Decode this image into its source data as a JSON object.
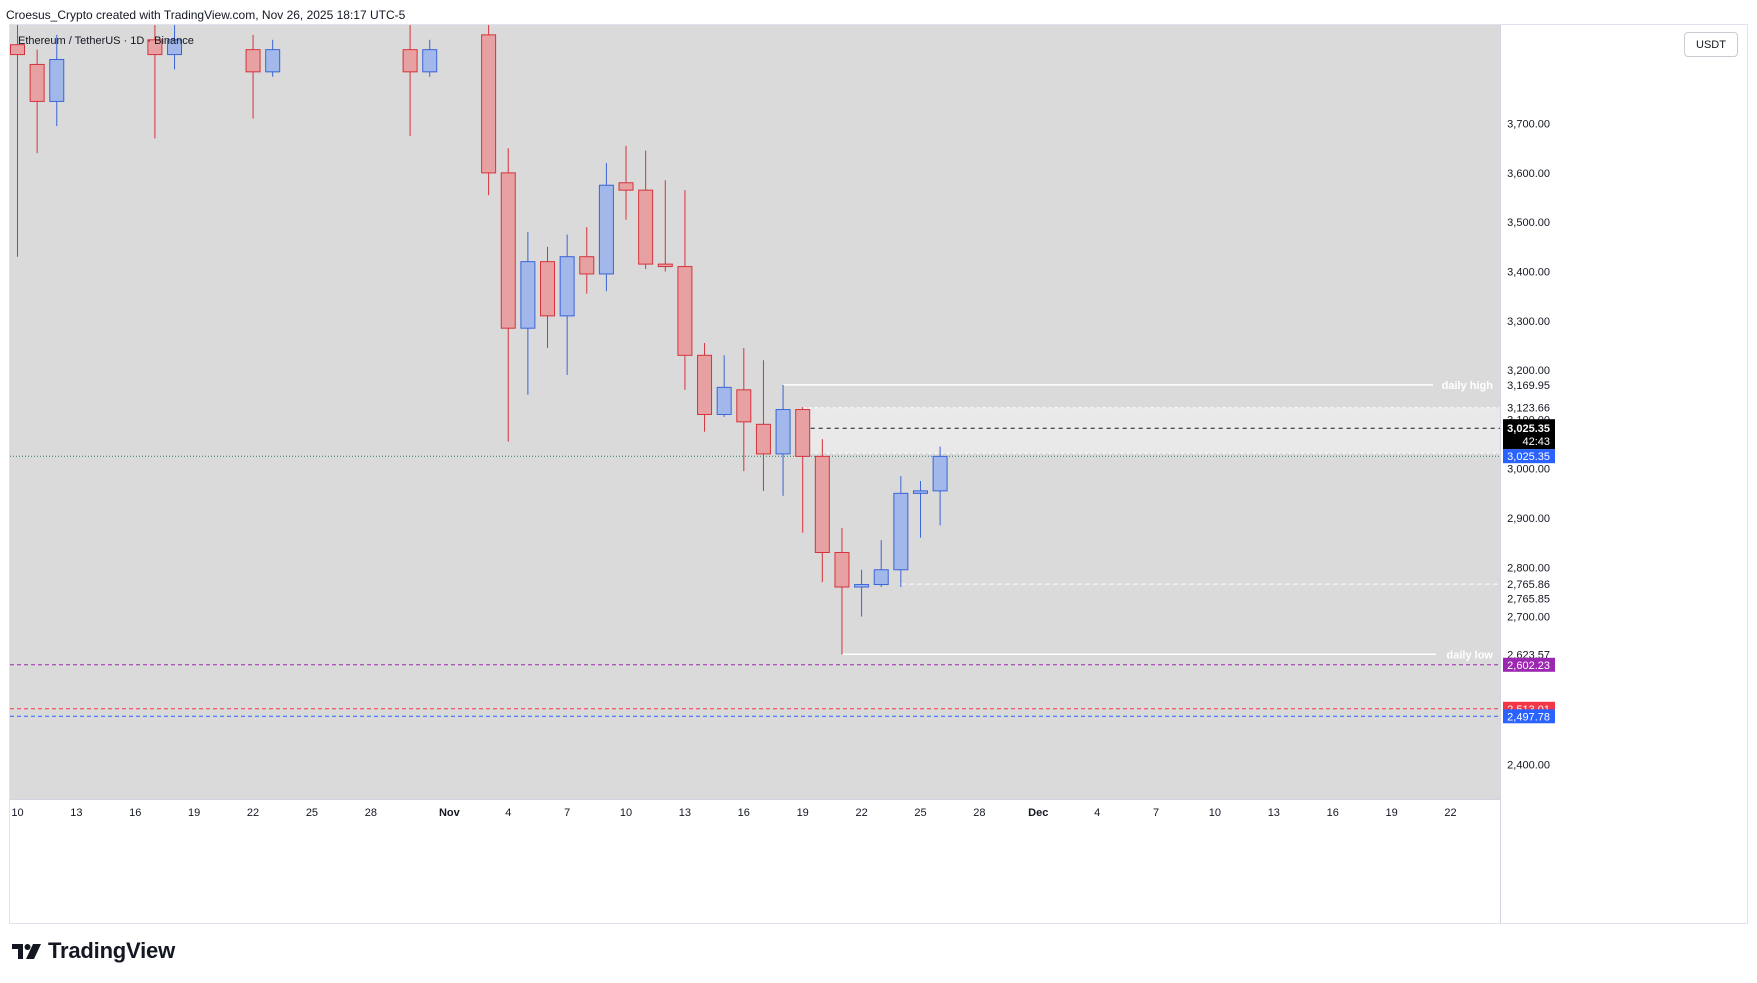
{
  "header": {
    "caption": "Croesus_Crypto created with TradingView.com, Nov 26, 2025 18:17 UTC-5"
  },
  "symbol": {
    "label": "Ethereum / TetherUS · 1D · Binance"
  },
  "currency_button": {
    "label": "USDT"
  },
  "brand": {
    "name": "TradingView",
    "icon": "tradingview-logo-icon"
  },
  "colors": {
    "background": "#dadada",
    "bull": "#a3b8ea",
    "bull_border": "#3a64d8",
    "bear": "#e8a1a3",
    "bear_border": "#d5333b",
    "purple_line": "#9c27b0",
    "red_line": "#f23645",
    "blue_line": "#2962ff"
  },
  "chart_data": {
    "type": "candlestick",
    "title": "",
    "xlabel": "",
    "ylabel": "",
    "ylim": [
      2330,
      3900
    ],
    "x_ticks": [
      "10",
      "13",
      "16",
      "19",
      "22",
      "25",
      "28",
      "Nov",
      "4",
      "7",
      "10",
      "13",
      "16",
      "19",
      "22",
      "25",
      "28",
      "Dec",
      "4",
      "7",
      "10",
      "13",
      "16",
      "19",
      "22"
    ],
    "y_ticks": [
      "2,400.00",
      "2,500.00",
      "2,600.00",
      "2,700.00",
      "2,800.00",
      "2,900.00",
      "3,000.00",
      "3,100.00",
      "3,200.00",
      "3,300.00",
      "3,400.00",
      "3,500.00",
      "3,600.00",
      "3,700.00"
    ],
    "y_tick_values": [
      2400,
      2500,
      2600,
      2700,
      2800,
      2900,
      3000,
      3100,
      3200,
      3300,
      3400,
      3500,
      3600,
      3700
    ],
    "x_tick_slots": [
      0,
      3,
      6,
      9,
      12,
      15,
      18,
      22,
      25,
      28,
      31,
      34,
      37,
      40,
      43,
      46,
      49,
      52,
      55,
      58,
      61,
      64,
      67,
      70,
      73
    ],
    "candles": [
      {
        "slot": 0,
        "o": 3860,
        "h": 3960,
        "l": 3430,
        "c": 3840
      },
      {
        "slot": 1,
        "o": 3820,
        "h": 3850,
        "l": 3640,
        "c": 3745
      },
      {
        "slot": 2,
        "o": 3745,
        "h": 3880,
        "l": 3695,
        "c": 3830
      },
      {
        "slot": 7,
        "o": 3870,
        "h": 3950,
        "l": 3670,
        "c": 3840
      },
      {
        "slot": 8,
        "o": 3840,
        "h": 3905,
        "l": 3810,
        "c": 3870
      },
      {
        "slot": 12,
        "o": 3850,
        "h": 3880,
        "l": 3710,
        "c": 3805
      },
      {
        "slot": 13,
        "o": 3805,
        "h": 3870,
        "l": 3795,
        "c": 3850
      },
      {
        "slot": 20,
        "o": 3850,
        "h": 3900,
        "l": 3675,
        "c": 3805
      },
      {
        "slot": 21,
        "o": 3805,
        "h": 3870,
        "l": 3795,
        "c": 3850
      },
      {
        "slot": 24,
        "o": 3880,
        "h": 3900,
        "l": 3555,
        "c": 3600
      },
      {
        "slot": 25,
        "o": 3600,
        "h": 3650,
        "l": 3055,
        "c": 3285
      },
      {
        "slot": 26,
        "o": 3285,
        "h": 3480,
        "l": 3150,
        "c": 3420
      },
      {
        "slot": 27,
        "o": 3420,
        "h": 3450,
        "l": 3245,
        "c": 3310
      },
      {
        "slot": 28,
        "o": 3310,
        "h": 3475,
        "l": 3190,
        "c": 3430
      },
      {
        "slot": 29,
        "o": 3430,
        "h": 3490,
        "l": 3355,
        "c": 3395
      },
      {
        "slot": 30,
        "o": 3395,
        "h": 3620,
        "l": 3360,
        "c": 3575
      },
      {
        "slot": 31,
        "o": 3580,
        "h": 3655,
        "l": 3505,
        "c": 3565
      },
      {
        "slot": 32,
        "o": 3565,
        "h": 3645,
        "l": 3405,
        "c": 3415
      },
      {
        "slot": 33,
        "o": 3415,
        "h": 3585,
        "l": 3400,
        "c": 3410
      },
      {
        "slot": 34,
        "o": 3410,
        "h": 3565,
        "l": 3160,
        "c": 3230
      },
      {
        "slot": 35,
        "o": 3230,
        "h": 3255,
        "l": 3075,
        "c": 3110
      },
      {
        "slot": 36,
        "o": 3110,
        "h": 3230,
        "l": 3105,
        "c": 3165
      },
      {
        "slot": 37,
        "o": 3160,
        "h": 3245,
        "l": 2995,
        "c": 3095
      },
      {
        "slot": 38,
        "o": 3090,
        "h": 3220,
        "l": 2955,
        "c": 3030
      },
      {
        "slot": 39,
        "o": 3030,
        "h": 3170,
        "l": 2945,
        "c": 3120
      },
      {
        "slot": 40,
        "o": 3120,
        "h": 3125,
        "l": 2870,
        "c": 3025
      },
      {
        "slot": 41,
        "o": 3025,
        "h": 3060,
        "l": 2770,
        "c": 2830
      },
      {
        "slot": 42,
        "o": 2830,
        "h": 2880,
        "l": 2623,
        "c": 2760
      },
      {
        "slot": 43,
        "o": 2760,
        "h": 2795,
        "l": 2700,
        "c": 2765
      },
      {
        "slot": 44,
        "o": 2765,
        "h": 2855,
        "l": 2760,
        "c": 2795
      },
      {
        "slot": 45,
        "o": 2795,
        "h": 2985,
        "l": 2760,
        "c": 2950
      },
      {
        "slot": 46,
        "o": 2950,
        "h": 2975,
        "l": 2860,
        "c": 2955
      },
      {
        "slot": 47,
        "o": 2955,
        "h": 3045,
        "l": 2885,
        "c": 3025
      }
    ],
    "current_price": {
      "value": 3025.35,
      "label": "3,025.35",
      "countdown": "42:43"
    },
    "annotations": {
      "daily_high": {
        "text": "daily high",
        "value": 3169.95,
        "label": "3,169.95"
      },
      "daily_low": {
        "text": "daily low",
        "value": 2623.57,
        "label": "2,623.57"
      },
      "levels": [
        {
          "label": "3,123.66",
          "value": 3123.66
        },
        {
          "label": "3,031.44",
          "value": 3031.44
        },
        {
          "label": "2,765.86",
          "value": 2765.86
        },
        {
          "label": "2,765.85",
          "value": 2765.85
        }
      ],
      "purple_line": {
        "label": "2,602.23",
        "value": 2602.23
      },
      "red_line": {
        "label": "2,513.01",
        "value": 2513.01
      },
      "blue_line": {
        "label": "2,497.78",
        "value": 2497.78
      }
    }
  }
}
